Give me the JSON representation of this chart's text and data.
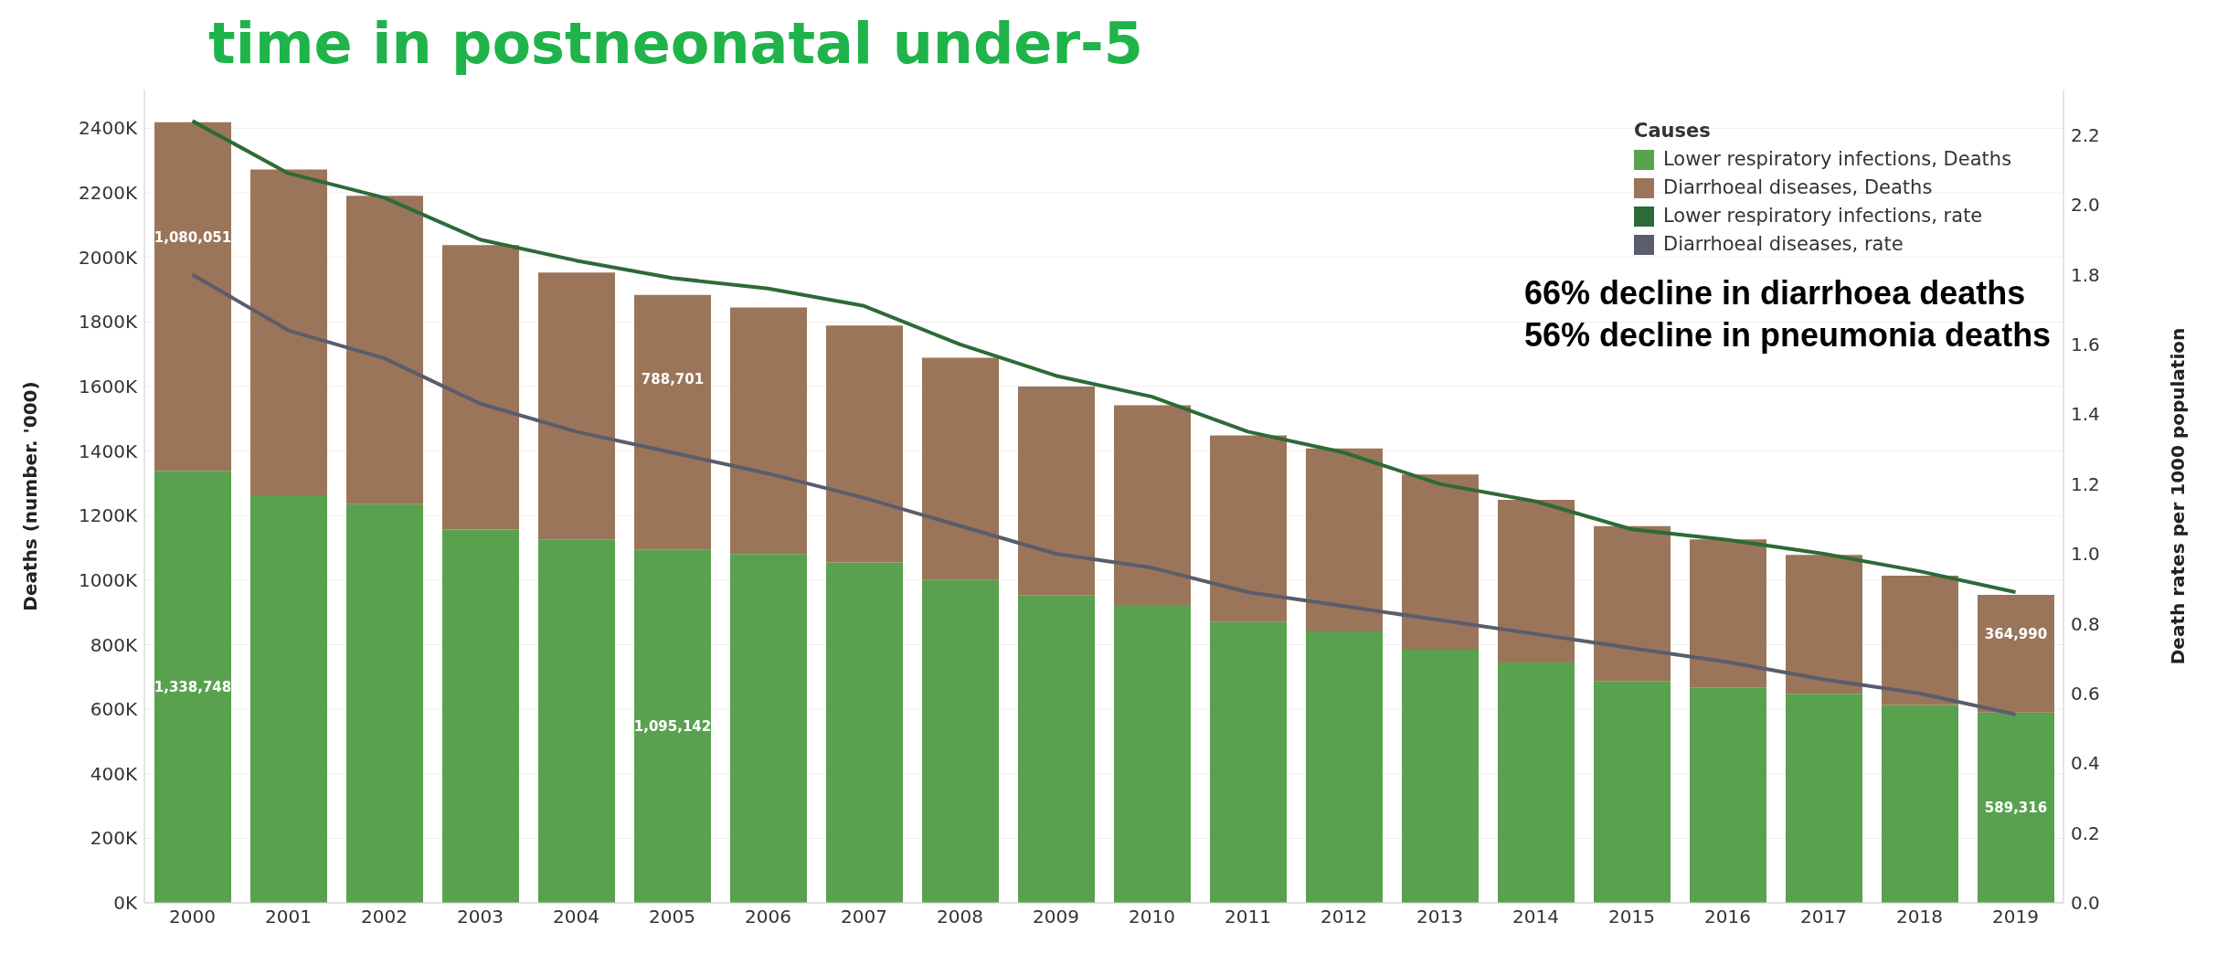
{
  "chart_data": {
    "type": "bar",
    "title": "time in  postneonatal under-5",
    "ylabel": "Deaths (number. '000)",
    "y2label": "Death rates per 1000 population",
    "legend_title": "Causes",
    "legend": "top right",
    "grid": "y",
    "stacked": true,
    "marker": "none",
    "line_style": "solid",
    "categories": [
      "2000",
      "2001",
      "2002",
      "2003",
      "2004",
      "2005",
      "2006",
      "2007",
      "2008",
      "2009",
      "2010",
      "2011",
      "2012",
      "2013",
      "2014",
      "2015",
      "2016",
      "2017",
      "2018",
      "2019"
    ],
    "series": [
      {
        "name": "Lower respiratory infections, Deaths",
        "color": "#59a14f",
        "values": [
          1338748,
          1263000,
          1235000,
          1157000,
          1125000,
          1095142,
          1081000,
          1055000,
          1000000,
          952000,
          923000,
          870000,
          841000,
          784000,
          745000,
          686000,
          666000,
          648000,
          613000,
          589316
        ],
        "value_labels": [
          "1,338,748",
          null,
          null,
          null,
          null,
          "1,095,142",
          null,
          null,
          null,
          null,
          null,
          null,
          null,
          null,
          null,
          null,
          null,
          null,
          null,
          "589,316"
        ]
      },
      {
        "name": "Diarrhoeal diseases, Deaths",
        "color": "#9b7559",
        "values": [
          1080051,
          1009000,
          956000,
          881000,
          828000,
          788701,
          764000,
          734000,
          689000,
          648000,
          619000,
          578000,
          567000,
          543000,
          504000,
          481000,
          460000,
          430000,
          401000,
          364990
        ],
        "value_labels": [
          "1,080,051",
          null,
          null,
          null,
          null,
          "788,701",
          null,
          null,
          null,
          null,
          null,
          null,
          null,
          null,
          null,
          null,
          null,
          null,
          null,
          "364,990"
        ]
      },
      {
        "name": "Lower respiratory infections, rate",
        "type": "line",
        "axis": "y2",
        "color": "#2d6a37",
        "values": [
          2.24,
          2.09,
          2.02,
          1.9,
          1.84,
          1.79,
          1.76,
          1.71,
          1.6,
          1.51,
          1.45,
          1.35,
          1.29,
          1.2,
          1.15,
          1.07,
          1.04,
          1.0,
          0.95,
          0.89
        ]
      },
      {
        "name": "Diarrhoeal diseases, rate",
        "type": "line",
        "axis": "y2",
        "color": "#5a5d6b",
        "values": [
          1.8,
          1.64,
          1.56,
          1.43,
          1.35,
          1.29,
          1.23,
          1.16,
          1.08,
          1.0,
          0.96,
          0.89,
          0.85,
          0.81,
          0.77,
          0.73,
          0.69,
          0.64,
          0.6,
          0.54
        ]
      }
    ],
    "ylim": [
      0,
      2520000
    ],
    "yticks": [
      {
        "value": 0,
        "label": "0K"
      },
      {
        "value": 200000,
        "label": "200K"
      },
      {
        "value": 400000,
        "label": "400K"
      },
      {
        "value": 600000,
        "label": "600K"
      },
      {
        "value": 800000,
        "label": "800K"
      },
      {
        "value": 1000000,
        "label": "1000K"
      },
      {
        "value": 1200000,
        "label": "1200K"
      },
      {
        "value": 1400000,
        "label": "1400K"
      },
      {
        "value": 1600000,
        "label": "1600K"
      },
      {
        "value": 1800000,
        "label": "1800K"
      },
      {
        "value": 2000000,
        "label": "2000K"
      },
      {
        "value": 2200000,
        "label": "2200K"
      },
      {
        "value": 2400000,
        "label": "2400K"
      }
    ],
    "y2lim": [
      0,
      2.33
    ],
    "y2ticks": [
      {
        "value": 0,
        "label": "0.0"
      },
      0.2,
      0.4,
      0.6,
      0.8,
      {
        "value": 1,
        "label": "1.0"
      },
      1.2,
      1.4,
      1.6,
      1.8,
      {
        "value": 2,
        "label": "2.0"
      },
      2.2
    ],
    "annotations": [
      "66% decline in diarrhoea deaths",
      "56% decline in pneumonia deaths"
    ]
  }
}
